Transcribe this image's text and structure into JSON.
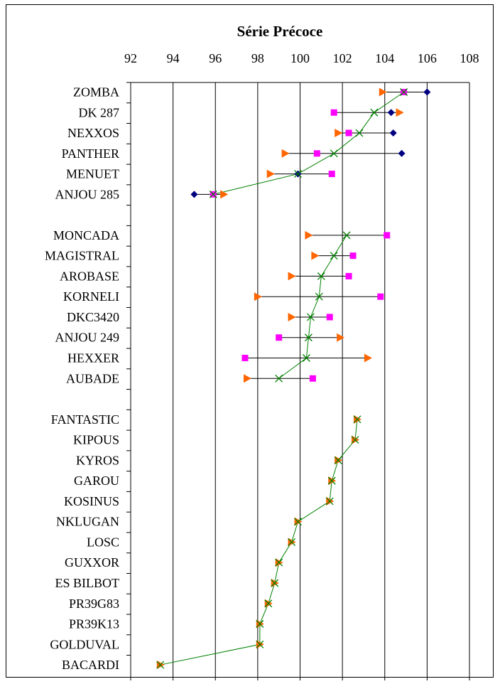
{
  "chart_data": {
    "type": "scatter",
    "title": "Série Précoce",
    "xlim": [
      92,
      108
    ],
    "xticks": [
      92,
      94,
      96,
      98,
      100,
      102,
      104,
      106,
      108
    ],
    "grid": "vertical",
    "legend": "none",
    "categories": [
      "ZOMBA",
      "DK 287",
      "NEXXOS",
      "PANTHER",
      "MENUET",
      "ANJOU 285",
      "",
      "MONCADA",
      "MAGISTRAL",
      "AROBASE",
      "KORNELI",
      "DKC3420",
      "ANJOU 249",
      "HEXXER",
      "AUBADE",
      "",
      "FANTASTIC",
      "KIPOUS",
      "KYROS",
      "GAROU",
      "KOSINUS",
      "NKLUGAN",
      "LOSC",
      "GUXXOR",
      "ES BILBOT",
      "PR39G83",
      "PR39K13",
      "GOLDUVAL",
      "BACARDI"
    ],
    "series": [
      {
        "marker": "diamond",
        "color": "#000080",
        "values": [
          106.0,
          104.3,
          104.4,
          104.8,
          99.9,
          95.0,
          null,
          null,
          null,
          null,
          null,
          null,
          null,
          null,
          null,
          null,
          null,
          null,
          null,
          null,
          null,
          null,
          null,
          null,
          null,
          null,
          null,
          null,
          null
        ]
      },
      {
        "marker": "square",
        "color": "#FF00FF",
        "values": [
          104.9,
          101.6,
          102.3,
          100.8,
          101.5,
          95.9,
          null,
          104.1,
          102.5,
          102.3,
          103.8,
          101.4,
          99.0,
          97.4,
          100.6,
          null,
          null,
          null,
          null,
          null,
          null,
          null,
          null,
          null,
          null,
          null,
          null,
          null,
          null
        ]
      },
      {
        "marker": "triangle",
        "color": "#FF6600",
        "values": [
          103.9,
          104.7,
          101.8,
          99.3,
          98.6,
          96.4,
          null,
          100.4,
          100.7,
          99.6,
          98.0,
          99.6,
          101.9,
          103.2,
          97.5,
          null,
          102.7,
          102.6,
          101.8,
          101.5,
          101.4,
          99.9,
          99.6,
          99.0,
          98.8,
          98.5,
          98.1,
          98.1,
          93.4
        ]
      },
      {
        "marker": "x",
        "color": "#008000",
        "line": true,
        "values": [
          104.9,
          103.5,
          102.8,
          101.6,
          99.9,
          95.9,
          null,
          102.2,
          101.6,
          101.0,
          100.9,
          100.5,
          100.4,
          100.3,
          99.0,
          null,
          102.7,
          102.6,
          101.8,
          101.5,
          101.4,
          99.9,
          99.6,
          99.0,
          98.8,
          98.5,
          98.1,
          98.1,
          93.4
        ]
      }
    ]
  }
}
